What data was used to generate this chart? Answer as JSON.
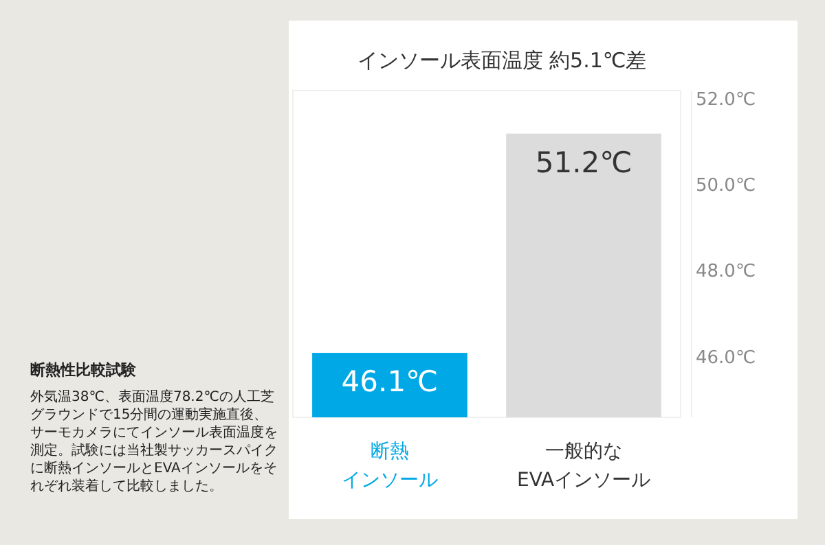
{
  "chart_data": {
    "type": "bar",
    "title": "インソール表面温度 約5.1℃差",
    "categories": [
      "断熱インソール",
      "一般的なEVAインソール"
    ],
    "values": [
      46.1,
      51.2
    ],
    "colors": [
      "#00a8e6",
      "#dcdcdc"
    ],
    "value_labels": [
      "46.1℃",
      "51.2℃"
    ],
    "ylim": [
      44.6,
      52.2
    ],
    "yticks": [
      {
        "value": 46,
        "label": "46.0℃"
      },
      {
        "value": 48,
        "label": "48.0℃"
      },
      {
        "value": 50,
        "label": "50.0℃"
      },
      {
        "value": 52,
        "label": "52.0℃"
      }
    ],
    "annotations": [
      "断熱性比較試験",
      "外気温38℃、表面温度78.2℃の人工芝グラウンドで15分間の運動実施直後、サーモカメラにてインソール表面温度を測定。試験には当社製サッカースパイクに断熱インソールとEVAインソールをそれぞれ装着して比較しました。"
    ]
  }
}
